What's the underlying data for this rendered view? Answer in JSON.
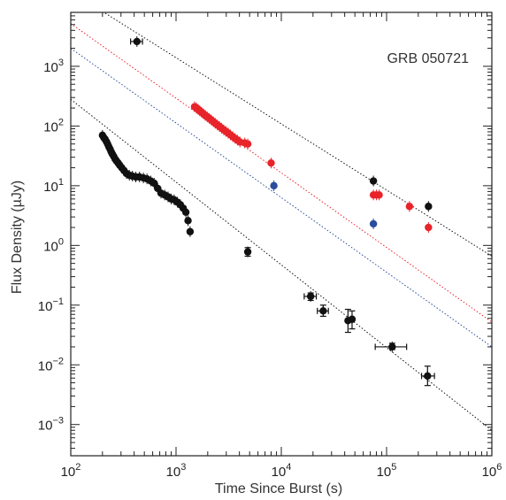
{
  "chart_data": {
    "type": "scatter",
    "annotation": "GRB 050721",
    "xlabel": "Time Since Burst (s)",
    "ylabel": "Flux Density (µJy)",
    "x_scale": "log",
    "y_scale": "log",
    "xlim": [
      100,
      1000000
    ],
    "ylim": [
      0.0003,
      8000
    ],
    "x_ticks": [
      {
        "value": 100,
        "mantissa": "10",
        "exp": "2"
      },
      {
        "value": 1000,
        "mantissa": "10",
        "exp": "3"
      },
      {
        "value": 10000,
        "mantissa": "10",
        "exp": "4"
      },
      {
        "value": 100000,
        "mantissa": "10",
        "exp": "5"
      },
      {
        "value": 1000000,
        "mantissa": "10",
        "exp": "6"
      }
    ],
    "y_ticks": [
      {
        "value": 0.001,
        "mantissa": "10",
        "exp": "−3"
      },
      {
        "value": 0.01,
        "mantissa": "10",
        "exp": "−2"
      },
      {
        "value": 0.1,
        "mantissa": "10",
        "exp": "−1"
      },
      {
        "value": 1,
        "mantissa": "10",
        "exp": "0"
      },
      {
        "value": 10,
        "mantissa": "10",
        "exp": "1"
      },
      {
        "value": 100,
        "mantissa": "10",
        "exp": "2"
      },
      {
        "value": 1000,
        "mantissa": "10",
        "exp": "3"
      }
    ],
    "grid": false,
    "colors": {
      "black": "#111111",
      "red": "#e8232a",
      "blue": "#2a4d9c"
    },
    "series": [
      {
        "color": "black",
        "points": [
          {
            "x": 425,
            "y": 2600,
            "xlo": 370,
            "xhi": 480
          },
          {
            "x": 4800,
            "y": 0.78,
            "ylo": 0.66,
            "yhi": 0.92
          },
          {
            "x": 19000,
            "y": 0.14,
            "xlo": 16500,
            "xhi": 21500,
            "ylo": 0.12,
            "yhi": 0.16
          },
          {
            "x": 25000,
            "y": 0.08,
            "xlo": 22000,
            "xhi": 28000,
            "ylo": 0.065,
            "yhi": 0.1
          },
          {
            "x": 43000,
            "y": 0.055,
            "ylo": 0.035,
            "yhi": 0.085
          },
          {
            "x": 47000,
            "y": 0.058,
            "ylo": 0.04,
            "yhi": 0.08
          },
          {
            "x": 113000,
            "y": 0.02,
            "xlo": 78000,
            "xhi": 155000,
            "ylo": 0.018,
            "yhi": 0.023
          },
          {
            "x": 245000,
            "y": 0.0065,
            "xlo": 215000,
            "xhi": 285000,
            "ylo": 0.0045,
            "yhi": 0.0095
          },
          {
            "x": 75000,
            "y": 12
          },
          {
            "x": 250000,
            "y": 4.5
          }
        ]
      },
      {
        "color": "black",
        "points": [
          {
            "x": 200,
            "y": 70
          },
          {
            "x": 206,
            "y": 64
          },
          {
            "x": 212,
            "y": 60
          },
          {
            "x": 218,
            "y": 55
          },
          {
            "x": 224,
            "y": 50
          },
          {
            "x": 230,
            "y": 45
          },
          {
            "x": 236,
            "y": 41
          },
          {
            "x": 242,
            "y": 37
          },
          {
            "x": 248,
            "y": 34
          },
          {
            "x": 256,
            "y": 31
          },
          {
            "x": 264,
            "y": 28
          },
          {
            "x": 272,
            "y": 26
          },
          {
            "x": 282,
            "y": 24
          },
          {
            "x": 292,
            "y": 22
          },
          {
            "x": 305,
            "y": 20
          },
          {
            "x": 320,
            "y": 18
          },
          {
            "x": 338,
            "y": 16
          },
          {
            "x": 360,
            "y": 15
          },
          {
            "x": 385,
            "y": 14.5
          },
          {
            "x": 415,
            "y": 14
          },
          {
            "x": 450,
            "y": 14
          },
          {
            "x": 490,
            "y": 13.5
          },
          {
            "x": 530,
            "y": 13
          },
          {
            "x": 575,
            "y": 12
          },
          {
            "x": 620,
            "y": 11
          },
          {
            "x": 670,
            "y": 9
          },
          {
            "x": 720,
            "y": 7.5
          },
          {
            "x": 780,
            "y": 7
          },
          {
            "x": 840,
            "y": 6.5
          },
          {
            "x": 900,
            "y": 6
          },
          {
            "x": 960,
            "y": 5.8
          },
          {
            "x": 1030,
            "y": 5.3
          },
          {
            "x": 1100,
            "y": 4.8
          },
          {
            "x": 1170,
            "y": 4.2
          },
          {
            "x": 1240,
            "y": 3.6
          },
          {
            "x": 1300,
            "y": 2.6
          },
          {
            "x": 1360,
            "y": 1.7
          }
        ]
      },
      {
        "color": "red",
        "points": [
          {
            "x": 1500,
            "y": 210
          },
          {
            "x": 1560,
            "y": 200
          },
          {
            "x": 1620,
            "y": 190
          },
          {
            "x": 1680,
            "y": 180
          },
          {
            "x": 1750,
            "y": 170
          },
          {
            "x": 1820,
            "y": 160
          },
          {
            "x": 1900,
            "y": 150
          },
          {
            "x": 1980,
            "y": 142
          },
          {
            "x": 2070,
            "y": 134
          },
          {
            "x": 2160,
            "y": 126
          },
          {
            "x": 2260,
            "y": 118
          },
          {
            "x": 2360,
            "y": 111
          },
          {
            "x": 2470,
            "y": 104
          },
          {
            "x": 2590,
            "y": 98
          },
          {
            "x": 2710,
            "y": 92
          },
          {
            "x": 2840,
            "y": 86
          },
          {
            "x": 2980,
            "y": 81
          },
          {
            "x": 3130,
            "y": 76
          },
          {
            "x": 3290,
            "y": 71
          },
          {
            "x": 3460,
            "y": 66
          },
          {
            "x": 3640,
            "y": 62
          },
          {
            "x": 3830,
            "y": 58
          },
          {
            "x": 4050,
            "y": 54
          },
          {
            "x": 4500,
            "y": 52
          },
          {
            "x": 4800,
            "y": 50
          },
          {
            "x": 8000,
            "y": 24
          },
          {
            "x": 75000,
            "y": 7
          },
          {
            "x": 80000,
            "y": 7
          },
          {
            "x": 85000,
            "y": 7
          },
          {
            "x": 165000,
            "y": 4.5
          },
          {
            "x": 250000,
            "y": 2
          }
        ]
      },
      {
        "color": "blue",
        "points": [
          {
            "x": 8500,
            "y": 10
          },
          {
            "x": 75000,
            "y": 2.3
          }
        ]
      }
    ],
    "lines": [
      {
        "color": "black",
        "from": {
          "x": 200,
          "y": 8300
        },
        "to": {
          "x": 1000000,
          "y": 0.66
        }
      },
      {
        "color": "red",
        "from": {
          "x": 100,
          "y": 5200
        },
        "to": {
          "x": 1000000,
          "y": 0.052
        }
      },
      {
        "color": "blue",
        "from": {
          "x": 100,
          "y": 2000
        },
        "to": {
          "x": 1000000,
          "y": 0.02
        }
      },
      {
        "color": "black",
        "from": {
          "x": 100,
          "y": 280
        },
        "to": {
          "x": 1000000,
          "y": 0.0008
        }
      }
    ]
  }
}
